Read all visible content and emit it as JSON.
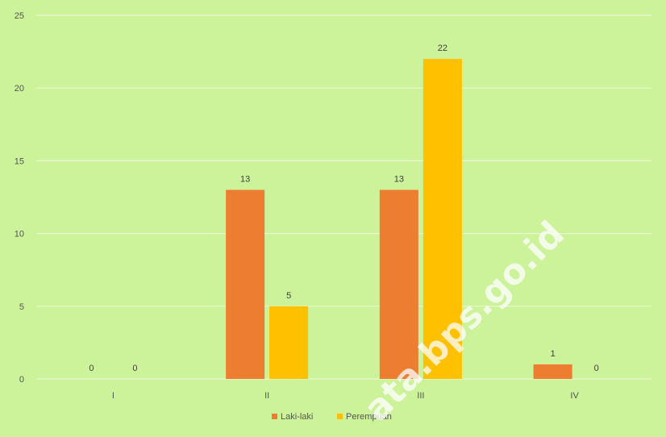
{
  "chart_data": {
    "type": "bar",
    "title": "",
    "xlabel": "",
    "ylabel": "",
    "categories": [
      "I",
      "II",
      "III",
      "IV"
    ],
    "series": [
      {
        "name": "Laki-laki",
        "values": [
          0,
          13,
          13,
          1
        ],
        "color": "#ed7d31"
      },
      {
        "name": "Perempuan",
        "values": [
          0,
          5,
          22,
          0
        ],
        "color": "#ffc000"
      }
    ],
    "ylim": [
      0,
      25
    ],
    "yticks": [
      0,
      5,
      10,
      15,
      20,
      25
    ],
    "grid": true,
    "legend": "bottom",
    "data_labels": true,
    "background_color": "#ccf29a",
    "gridline_color": "#e8f7cf"
  },
  "watermark": {
    "text": "ata.bps.go.id"
  }
}
